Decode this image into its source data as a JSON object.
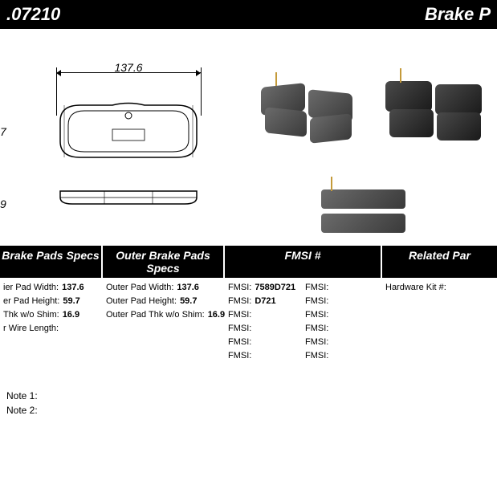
{
  "topbar": {
    "left": ".07210",
    "right": "Brake P"
  },
  "diagram": {
    "width_label": "137.6",
    "height_label": "7",
    "thickness_label": "9"
  },
  "headers": {
    "inner": "Brake Pads Specs",
    "outer": "Outer Brake Pads Specs",
    "fmsi": "FMSI #",
    "related": "Related Par"
  },
  "inner_specs": [
    {
      "label": "ier Pad Width:",
      "value": "137.6"
    },
    {
      "label": "er Pad Height:",
      "value": "59.7"
    },
    {
      "label": "Thk w/o Shim:",
      "value": "16.9"
    },
    {
      "label": "r Wire Length:",
      "value": ""
    }
  ],
  "outer_specs": [
    {
      "label": "Outer Pad Width:",
      "value": "137.6"
    },
    {
      "label": "Outer Pad Height:",
      "value": "59.7"
    },
    {
      "label": "Outer Pad Thk w/o Shim:",
      "value": "16.9"
    }
  ],
  "fmsi_left": [
    {
      "label": "FMSI:",
      "value": "7589D721"
    },
    {
      "label": "FMSI:",
      "value": "D721"
    },
    {
      "label": "FMSI:",
      "value": ""
    },
    {
      "label": "FMSI:",
      "value": ""
    },
    {
      "label": "FMSI:",
      "value": ""
    },
    {
      "label": "FMSI:",
      "value": ""
    }
  ],
  "fmsi_right": [
    {
      "label": "FMSI:",
      "value": ""
    },
    {
      "label": "FMSI:",
      "value": ""
    },
    {
      "label": "FMSI:",
      "value": ""
    },
    {
      "label": "FMSI:",
      "value": ""
    },
    {
      "label": "FMSI:",
      "value": ""
    },
    {
      "label": "FMSI:",
      "value": ""
    }
  ],
  "related": [
    {
      "label": "Hardware Kit #:",
      "value": ""
    }
  ],
  "notes": {
    "note1": "Note 1:",
    "note2": "Note 2:"
  },
  "colors": {
    "photo_dark": "#3a3a3a",
    "photo_light": "#6b6b6b",
    "pin": "#c49a3a"
  }
}
